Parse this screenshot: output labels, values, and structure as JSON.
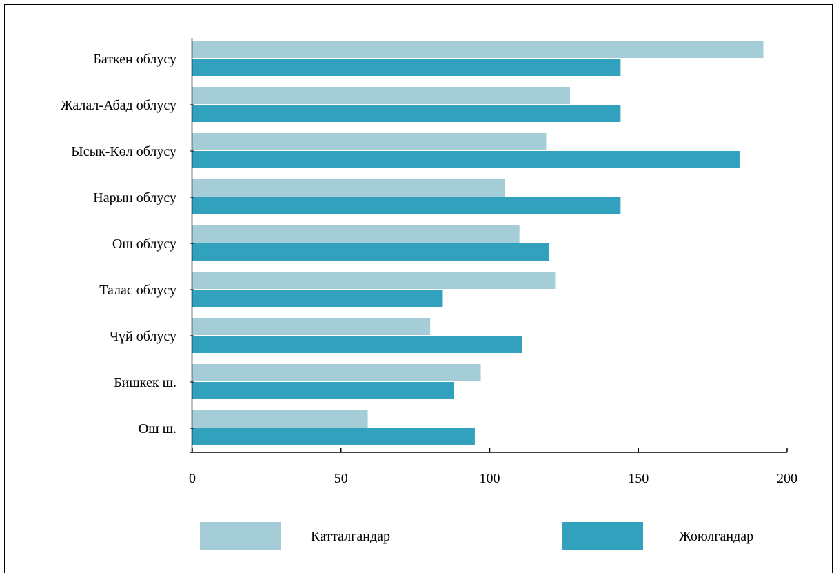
{
  "chart_data": {
    "type": "bar",
    "orientation": "horizontal",
    "title": "",
    "xlabel": "",
    "ylabel": "",
    "categories": [
      "Баткен облусу",
      "Жалал-Абад облусу",
      "Ысык-Көл облусу",
      "Нарын облусу",
      "Ош облусу",
      "Талас облусу",
      "Чүй облусу",
      "Бишкек ш.",
      "Ош ш."
    ],
    "series": [
      {
        "name": "Катталгандар",
        "color": "#a5cdd8",
        "values": [
          192,
          127,
          119,
          105,
          110,
          122,
          80,
          97,
          59
        ]
      },
      {
        "name": "Жоюлгандар",
        "color": "#31a1bd",
        "values": [
          144,
          144,
          184,
          144,
          120,
          84,
          111,
          88,
          95
        ]
      }
    ],
    "xlim": [
      0,
      200
    ],
    "xticks": [
      "0",
      "50",
      "100",
      "150",
      "200"
    ],
    "grid": false,
    "legend_position": "bottom"
  }
}
